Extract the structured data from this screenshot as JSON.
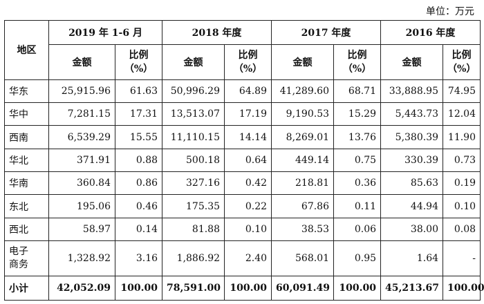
{
  "unit_label": "单位：万元",
  "headers": {
    "region": "地区",
    "periods": [
      "2019 年 1-6 月",
      "2018 年度",
      "2017 年度",
      "2016 年度"
    ],
    "amount": "金额",
    "ratio_line1": "比例",
    "ratio_line2": "（%）"
  },
  "rows": [
    {
      "region": "华东",
      "v": [
        "25,915.96",
        "61.63",
        "50,996.29",
        "64.89",
        "41,289.60",
        "68.71",
        "33,888.95",
        "74.95"
      ]
    },
    {
      "region": "华中",
      "v": [
        "7,281.15",
        "17.31",
        "13,513.07",
        "17.19",
        "9,190.53",
        "15.29",
        "5,443.73",
        "12.04"
      ]
    },
    {
      "region": "西南",
      "v": [
        "6,539.29",
        "15.55",
        "11,110.15",
        "14.14",
        "8,269.01",
        "13.76",
        "5,380.39",
        "11.90"
      ]
    },
    {
      "region": "华北",
      "v": [
        "371.91",
        "0.88",
        "500.18",
        "0.64",
        "449.14",
        "0.75",
        "330.39",
        "0.73"
      ]
    },
    {
      "region": "华南",
      "v": [
        "360.84",
        "0.86",
        "327.16",
        "0.42",
        "218.81",
        "0.36",
        "85.63",
        "0.19"
      ]
    },
    {
      "region": "东北",
      "v": [
        "195.06",
        "0.46",
        "175.35",
        "0.22",
        "67.86",
        "0.11",
        "44.94",
        "0.10"
      ]
    },
    {
      "region": "西北",
      "v": [
        "58.97",
        "0.14",
        "81.88",
        "0.10",
        "38.53",
        "0.06",
        "38.00",
        "0.08"
      ]
    },
    {
      "region_line1": "电子",
      "region_line2": "商务",
      "v": [
        "1,328.92",
        "3.16",
        "1,886.92",
        "2.40",
        "568.01",
        "0.95",
        "1.64",
        "-"
      ]
    }
  ],
  "total": {
    "label": "小计",
    "v": [
      "42,052.09",
      "100.00",
      "78,591.00",
      "100.00",
      "60,091.49",
      "100.00",
      "45,213.67",
      "100.00"
    ]
  }
}
